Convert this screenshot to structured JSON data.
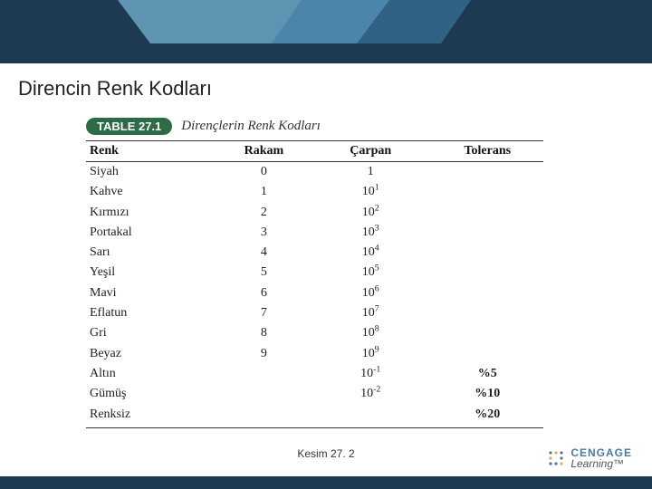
{
  "slide": {
    "title": "Direncin Renk Kodları",
    "footer_caption": "Kesim 27. 2"
  },
  "table": {
    "badge": "TABLE 27.1",
    "caption": "Dirençlerin Renk Kodları",
    "headers": {
      "renk": "Renk",
      "rakam": "Rakam",
      "carpan": "Çarpan",
      "tolerans": "Tolerans"
    },
    "rows": [
      {
        "renk": "Siyah",
        "rakam": "0",
        "base": "1",
        "exp": "",
        "tol": ""
      },
      {
        "renk": "Kahve",
        "rakam": "1",
        "base": "10",
        "exp": "1",
        "tol": ""
      },
      {
        "renk": "Kırmızı",
        "rakam": "2",
        "base": "10",
        "exp": "2",
        "tol": ""
      },
      {
        "renk": "Portakal",
        "rakam": "3",
        "base": "10",
        "exp": "3",
        "tol": ""
      },
      {
        "renk": "Sarı",
        "rakam": "4",
        "base": "10",
        "exp": "4",
        "tol": ""
      },
      {
        "renk": "Yeşil",
        "rakam": "5",
        "base": "10",
        "exp": "5",
        "tol": ""
      },
      {
        "renk": "Mavi",
        "rakam": "6",
        "base": "10",
        "exp": "6",
        "tol": ""
      },
      {
        "renk": "Eflatun",
        "rakam": "7",
        "base": "10",
        "exp": "7",
        "tol": ""
      },
      {
        "renk": "Gri",
        "rakam": "8",
        "base": "10",
        "exp": "8",
        "tol": ""
      },
      {
        "renk": "Beyaz",
        "rakam": "9",
        "base": "10",
        "exp": "9",
        "tol": ""
      },
      {
        "renk": "Altın",
        "rakam": "",
        "base": "10",
        "exp": "-1",
        "tol": "%5"
      },
      {
        "renk": "Gümüş",
        "rakam": "",
        "base": "10",
        "exp": "-2",
        "tol": "%10"
      },
      {
        "renk": "Renksiz",
        "rakam": "",
        "base": "",
        "exp": "",
        "tol": "%20"
      }
    ]
  },
  "brand": {
    "top": "CENGAGE",
    "bottom": "Learning™"
  },
  "colors": {
    "header_dark": "#1d3a52",
    "header_light": "#6aa3c3",
    "badge_green": "#2d6b47",
    "brand_blue": "#4a7a9a"
  }
}
